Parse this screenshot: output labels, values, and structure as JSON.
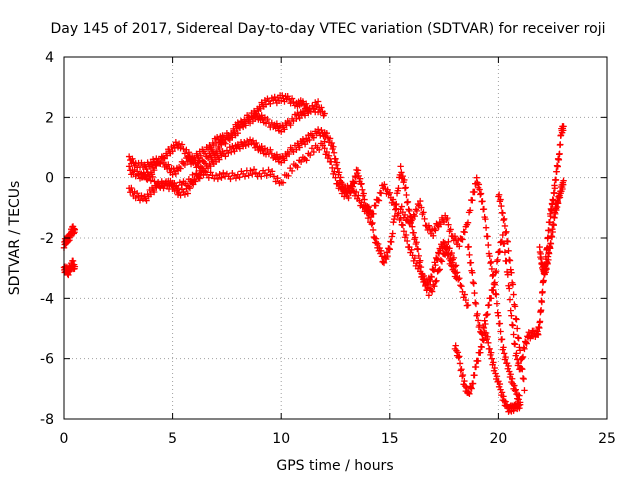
{
  "chart_data": {
    "type": "scatter",
    "title": "Day 145 of 2017, Sidereal Day-to-day VTEC variation (SDTVAR) for receiver roji",
    "xlabel": "GPS time / hours",
    "ylabel": "SDTVAR / TECUs",
    "xlim": [
      0,
      25
    ],
    "ylim": [
      -8,
      4
    ],
    "xticks": [
      0,
      5,
      10,
      15,
      20,
      25
    ],
    "yticks": [
      -8,
      -6,
      -4,
      -2,
      0,
      2,
      4
    ],
    "xtick_labels": [
      "0",
      "5",
      "10",
      "15",
      "20",
      "25"
    ],
    "ytick_labels": [
      "-8",
      "-6",
      "-4",
      "-2",
      "0",
      "2",
      "4"
    ],
    "grid": true,
    "legend": "none",
    "marker": "+",
    "color": "#ff0000",
    "series": [
      {
        "values": [
          [
            0.0,
            -2.2
          ],
          [
            0.1,
            -2.1
          ],
          [
            0.2,
            -2.0
          ],
          [
            0.3,
            -1.9
          ],
          [
            0.4,
            -1.7
          ],
          [
            0.5,
            -1.8
          ]
        ]
      },
      {
        "values": [
          [
            0.0,
            -3.1
          ],
          [
            0.1,
            -3.0
          ],
          [
            0.2,
            -3.1
          ],
          [
            0.3,
            -3.0
          ],
          [
            0.4,
            -2.8
          ],
          [
            0.5,
            -3.0
          ]
        ]
      },
      {
        "values": [
          [
            3.0,
            0.6
          ],
          [
            3.3,
            0.5
          ],
          [
            3.7,
            0.3
          ],
          [
            4.0,
            0.5
          ],
          [
            4.3,
            0.6
          ],
          [
            4.7,
            0.4
          ],
          [
            5.0,
            0.2
          ],
          [
            5.3,
            0.3
          ],
          [
            5.7,
            0.6
          ],
          [
            6.0,
            0.5
          ],
          [
            6.3,
            0.4
          ],
          [
            6.7,
            0.7
          ],
          [
            7.0,
            0.9
          ],
          [
            7.3,
            1.1
          ],
          [
            7.7,
            1.4
          ],
          [
            8.0,
            1.6
          ],
          [
            8.3,
            1.9
          ],
          [
            8.7,
            2.1
          ],
          [
            9.0,
            2.3
          ],
          [
            9.3,
            2.5
          ],
          [
            9.7,
            2.6
          ],
          [
            10.0,
            2.6
          ],
          [
            10.3,
            2.6
          ],
          [
            10.7,
            2.5
          ],
          [
            11.0,
            2.4
          ],
          [
            11.3,
            2.3
          ],
          [
            11.7,
            2.3
          ],
          [
            12.0,
            2.1
          ]
        ]
      },
      {
        "values": [
          [
            3.0,
            0.3
          ],
          [
            3.3,
            0.1
          ],
          [
            3.7,
            0.0
          ],
          [
            4.0,
            0.2
          ],
          [
            4.3,
            0.4
          ],
          [
            4.7,
            0.8
          ],
          [
            5.0,
            1.0
          ],
          [
            5.3,
            1.1
          ],
          [
            5.7,
            0.8
          ],
          [
            6.0,
            0.6
          ],
          [
            6.3,
            0.8
          ],
          [
            6.7,
            1.0
          ],
          [
            7.0,
            1.2
          ],
          [
            7.3,
            1.3
          ],
          [
            7.7,
            1.5
          ],
          [
            8.0,
            1.7
          ],
          [
            8.3,
            1.8
          ],
          [
            8.7,
            2.0
          ],
          [
            9.0,
            2.0
          ],
          [
            9.3,
            1.9
          ],
          [
            9.7,
            1.7
          ],
          [
            10.0,
            1.6
          ],
          [
            10.3,
            1.8
          ],
          [
            10.7,
            2.0
          ],
          [
            11.0,
            2.1
          ],
          [
            11.3,
            2.3
          ],
          [
            11.7,
            2.4
          ]
        ]
      },
      {
        "values": [
          [
            3.0,
            -0.4
          ],
          [
            3.3,
            -0.6
          ],
          [
            3.7,
            -0.7
          ],
          [
            4.0,
            -0.5
          ],
          [
            4.3,
            -0.3
          ],
          [
            4.7,
            -0.1
          ],
          [
            5.0,
            -0.3
          ],
          [
            5.3,
            -0.5
          ],
          [
            5.7,
            -0.4
          ],
          [
            6.0,
            -0.1
          ],
          [
            6.3,
            0.2
          ],
          [
            6.7,
            0.4
          ],
          [
            7.0,
            0.6
          ],
          [
            7.3,
            0.8
          ],
          [
            7.7,
            0.9
          ],
          [
            8.0,
            1.0
          ],
          [
            8.3,
            1.2
          ],
          [
            8.7,
            1.1
          ],
          [
            9.0,
            1.0
          ],
          [
            9.3,
            0.9
          ],
          [
            9.7,
            0.7
          ],
          [
            10.0,
            0.6
          ],
          [
            10.3,
            0.8
          ],
          [
            10.7,
            1.0
          ],
          [
            11.0,
            1.2
          ],
          [
            11.3,
            1.3
          ],
          [
            11.7,
            1.5
          ],
          [
            12.0,
            1.5
          ]
        ]
      },
      {
        "values": [
          [
            3.5,
            0.1
          ],
          [
            4.0,
            0.0
          ],
          [
            4.5,
            -0.3
          ],
          [
            5.0,
            -0.3
          ],
          [
            5.5,
            -0.2
          ],
          [
            6.0,
            0.0
          ],
          [
            6.5,
            0.1
          ],
          [
            7.0,
            0.1
          ],
          [
            7.5,
            0.0
          ],
          [
            8.0,
            0.1
          ],
          [
            8.5,
            0.2
          ],
          [
            9.0,
            0.1
          ],
          [
            9.5,
            0.2
          ],
          [
            10.0,
            -0.2
          ],
          [
            10.5,
            0.3
          ],
          [
            11.0,
            0.6
          ],
          [
            11.5,
            0.9
          ],
          [
            12.0,
            1.1
          ]
        ]
      },
      {
        "values": [
          [
            12.0,
            1.5
          ],
          [
            12.3,
            1.2
          ],
          [
            12.5,
            0.6
          ],
          [
            12.7,
            0.0
          ],
          [
            12.9,
            -0.4
          ],
          [
            13.1,
            -0.6
          ],
          [
            13.3,
            -0.2
          ],
          [
            13.5,
            0.2
          ],
          [
            13.7,
            -0.3
          ],
          [
            13.9,
            -0.9
          ],
          [
            14.1,
            -1.2
          ],
          [
            14.3,
            -2.0
          ],
          [
            14.5,
            -2.3
          ],
          [
            14.7,
            -2.8
          ],
          [
            14.9,
            -2.5
          ],
          [
            15.1,
            -2.0
          ],
          [
            15.3,
            -0.8
          ],
          [
            15.5,
            0.3
          ],
          [
            15.7,
            -0.3
          ],
          [
            15.9,
            -1.2
          ],
          [
            16.1,
            -1.8
          ],
          [
            16.3,
            -2.5
          ],
          [
            16.5,
            -3.2
          ],
          [
            16.7,
            -3.6
          ],
          [
            16.9,
            -3.3
          ],
          [
            17.1,
            -2.8
          ],
          [
            17.3,
            -2.4
          ],
          [
            17.5,
            -2.2
          ],
          [
            17.7,
            -2.6
          ],
          [
            17.9,
            -3.0
          ],
          [
            18.1,
            -3.4
          ]
        ]
      },
      {
        "values": [
          [
            12.0,
            1.0
          ],
          [
            12.3,
            0.4
          ],
          [
            12.6,
            -0.2
          ],
          [
            12.9,
            -0.5
          ],
          [
            13.2,
            -0.3
          ],
          [
            13.5,
            -0.6
          ],
          [
            13.8,
            -1.0
          ],
          [
            14.1,
            -1.4
          ],
          [
            14.4,
            -0.8
          ],
          [
            14.7,
            -0.3
          ],
          [
            15.0,
            -0.6
          ],
          [
            15.3,
            -1.0
          ],
          [
            15.6,
            -1.7
          ],
          [
            15.9,
            -2.3
          ],
          [
            16.2,
            -2.8
          ],
          [
            16.5,
            -3.3
          ],
          [
            16.8,
            -3.8
          ],
          [
            17.1,
            -3.5
          ],
          [
            17.4,
            -2.7
          ],
          [
            17.7,
            -2.2
          ],
          [
            18.0,
            -2.9
          ],
          [
            18.3,
            -3.7
          ],
          [
            18.6,
            -4.2
          ]
        ]
      },
      {
        "values": [
          [
            15.5,
            -1.0
          ],
          [
            15.8,
            -1.5
          ],
          [
            16.1,
            -1.2
          ],
          [
            16.4,
            -0.9
          ],
          [
            16.7,
            -1.6
          ],
          [
            17.0,
            -1.8
          ],
          [
            17.3,
            -1.5
          ],
          [
            17.6,
            -1.3
          ],
          [
            17.9,
            -2.0
          ],
          [
            18.2,
            -2.2
          ],
          [
            18.5,
            -1.7
          ],
          [
            18.8,
            -0.7
          ],
          [
            19.0,
            -0.1
          ],
          [
            19.2,
            -0.5
          ],
          [
            19.4,
            -1.5
          ],
          [
            19.6,
            -2.6
          ],
          [
            19.8,
            -3.4
          ],
          [
            20.0,
            -4.6
          ],
          [
            20.2,
            -5.6
          ],
          [
            20.4,
            -6.2
          ],
          [
            20.6,
            -6.7
          ],
          [
            20.8,
            -7.1
          ],
          [
            21.0,
            -7.4
          ]
        ]
      },
      {
        "values": [
          [
            18.0,
            -5.6
          ],
          [
            18.2,
            -6.0
          ],
          [
            18.4,
            -6.8
          ],
          [
            18.6,
            -7.2
          ],
          [
            18.8,
            -6.8
          ],
          [
            19.0,
            -6.2
          ],
          [
            19.2,
            -5.6
          ],
          [
            19.4,
            -5.1
          ],
          [
            19.6,
            -5.7
          ],
          [
            19.8,
            -6.3
          ],
          [
            20.0,
            -6.8
          ],
          [
            20.2,
            -7.3
          ],
          [
            20.4,
            -7.6
          ],
          [
            20.6,
            -7.7
          ],
          [
            20.8,
            -7.6
          ],
          [
            21.0,
            -7.5
          ]
        ]
      },
      {
        "values": [
          [
            18.6,
            -2.2
          ],
          [
            18.8,
            -3.2
          ],
          [
            19.0,
            -4.5
          ],
          [
            19.2,
            -5.2
          ],
          [
            19.4,
            -4.8
          ],
          [
            19.6,
            -4.1
          ],
          [
            19.8,
            -3.5
          ],
          [
            20.0,
            -2.6
          ],
          [
            20.2,
            -1.9
          ],
          [
            20.4,
            -3.0
          ],
          [
            20.6,
            -4.6
          ],
          [
            20.8,
            -5.8
          ],
          [
            21.0,
            -6.4
          ],
          [
            21.2,
            -5.6
          ],
          [
            21.4,
            -5.2
          ],
          [
            21.6,
            -5.2
          ],
          [
            21.8,
            -5.2
          ]
        ]
      },
      {
        "values": [
          [
            20.0,
            -0.5
          ],
          [
            20.2,
            -1.2
          ],
          [
            20.4,
            -2.0
          ],
          [
            20.6,
            -3.2
          ],
          [
            20.8,
            -4.6
          ],
          [
            21.0,
            -5.8
          ],
          [
            21.2,
            -7.0
          ]
        ]
      },
      {
        "values": [
          [
            21.8,
            -5.3
          ],
          [
            21.9,
            -4.8
          ],
          [
            22.0,
            -4.0
          ],
          [
            22.1,
            -3.2
          ],
          [
            22.2,
            -2.6
          ],
          [
            22.3,
            -1.8
          ],
          [
            22.4,
            -1.2
          ],
          [
            22.5,
            -0.8
          ],
          [
            22.6,
            -0.3
          ],
          [
            22.7,
            0.3
          ],
          [
            22.8,
            0.8
          ],
          [
            22.9,
            1.5
          ],
          [
            23.0,
            1.7
          ]
        ]
      },
      {
        "values": [
          [
            21.9,
            -2.4
          ],
          [
            22.0,
            -2.8
          ],
          [
            22.1,
            -3.2
          ],
          [
            22.2,
            -3.0
          ],
          [
            22.3,
            -2.6
          ],
          [
            22.4,
            -2.2
          ],
          [
            22.5,
            -1.7
          ],
          [
            22.6,
            -1.2
          ],
          [
            22.7,
            -0.9
          ],
          [
            22.8,
            -0.6
          ],
          [
            22.9,
            -0.4
          ],
          [
            23.0,
            -0.2
          ]
        ]
      }
    ]
  }
}
